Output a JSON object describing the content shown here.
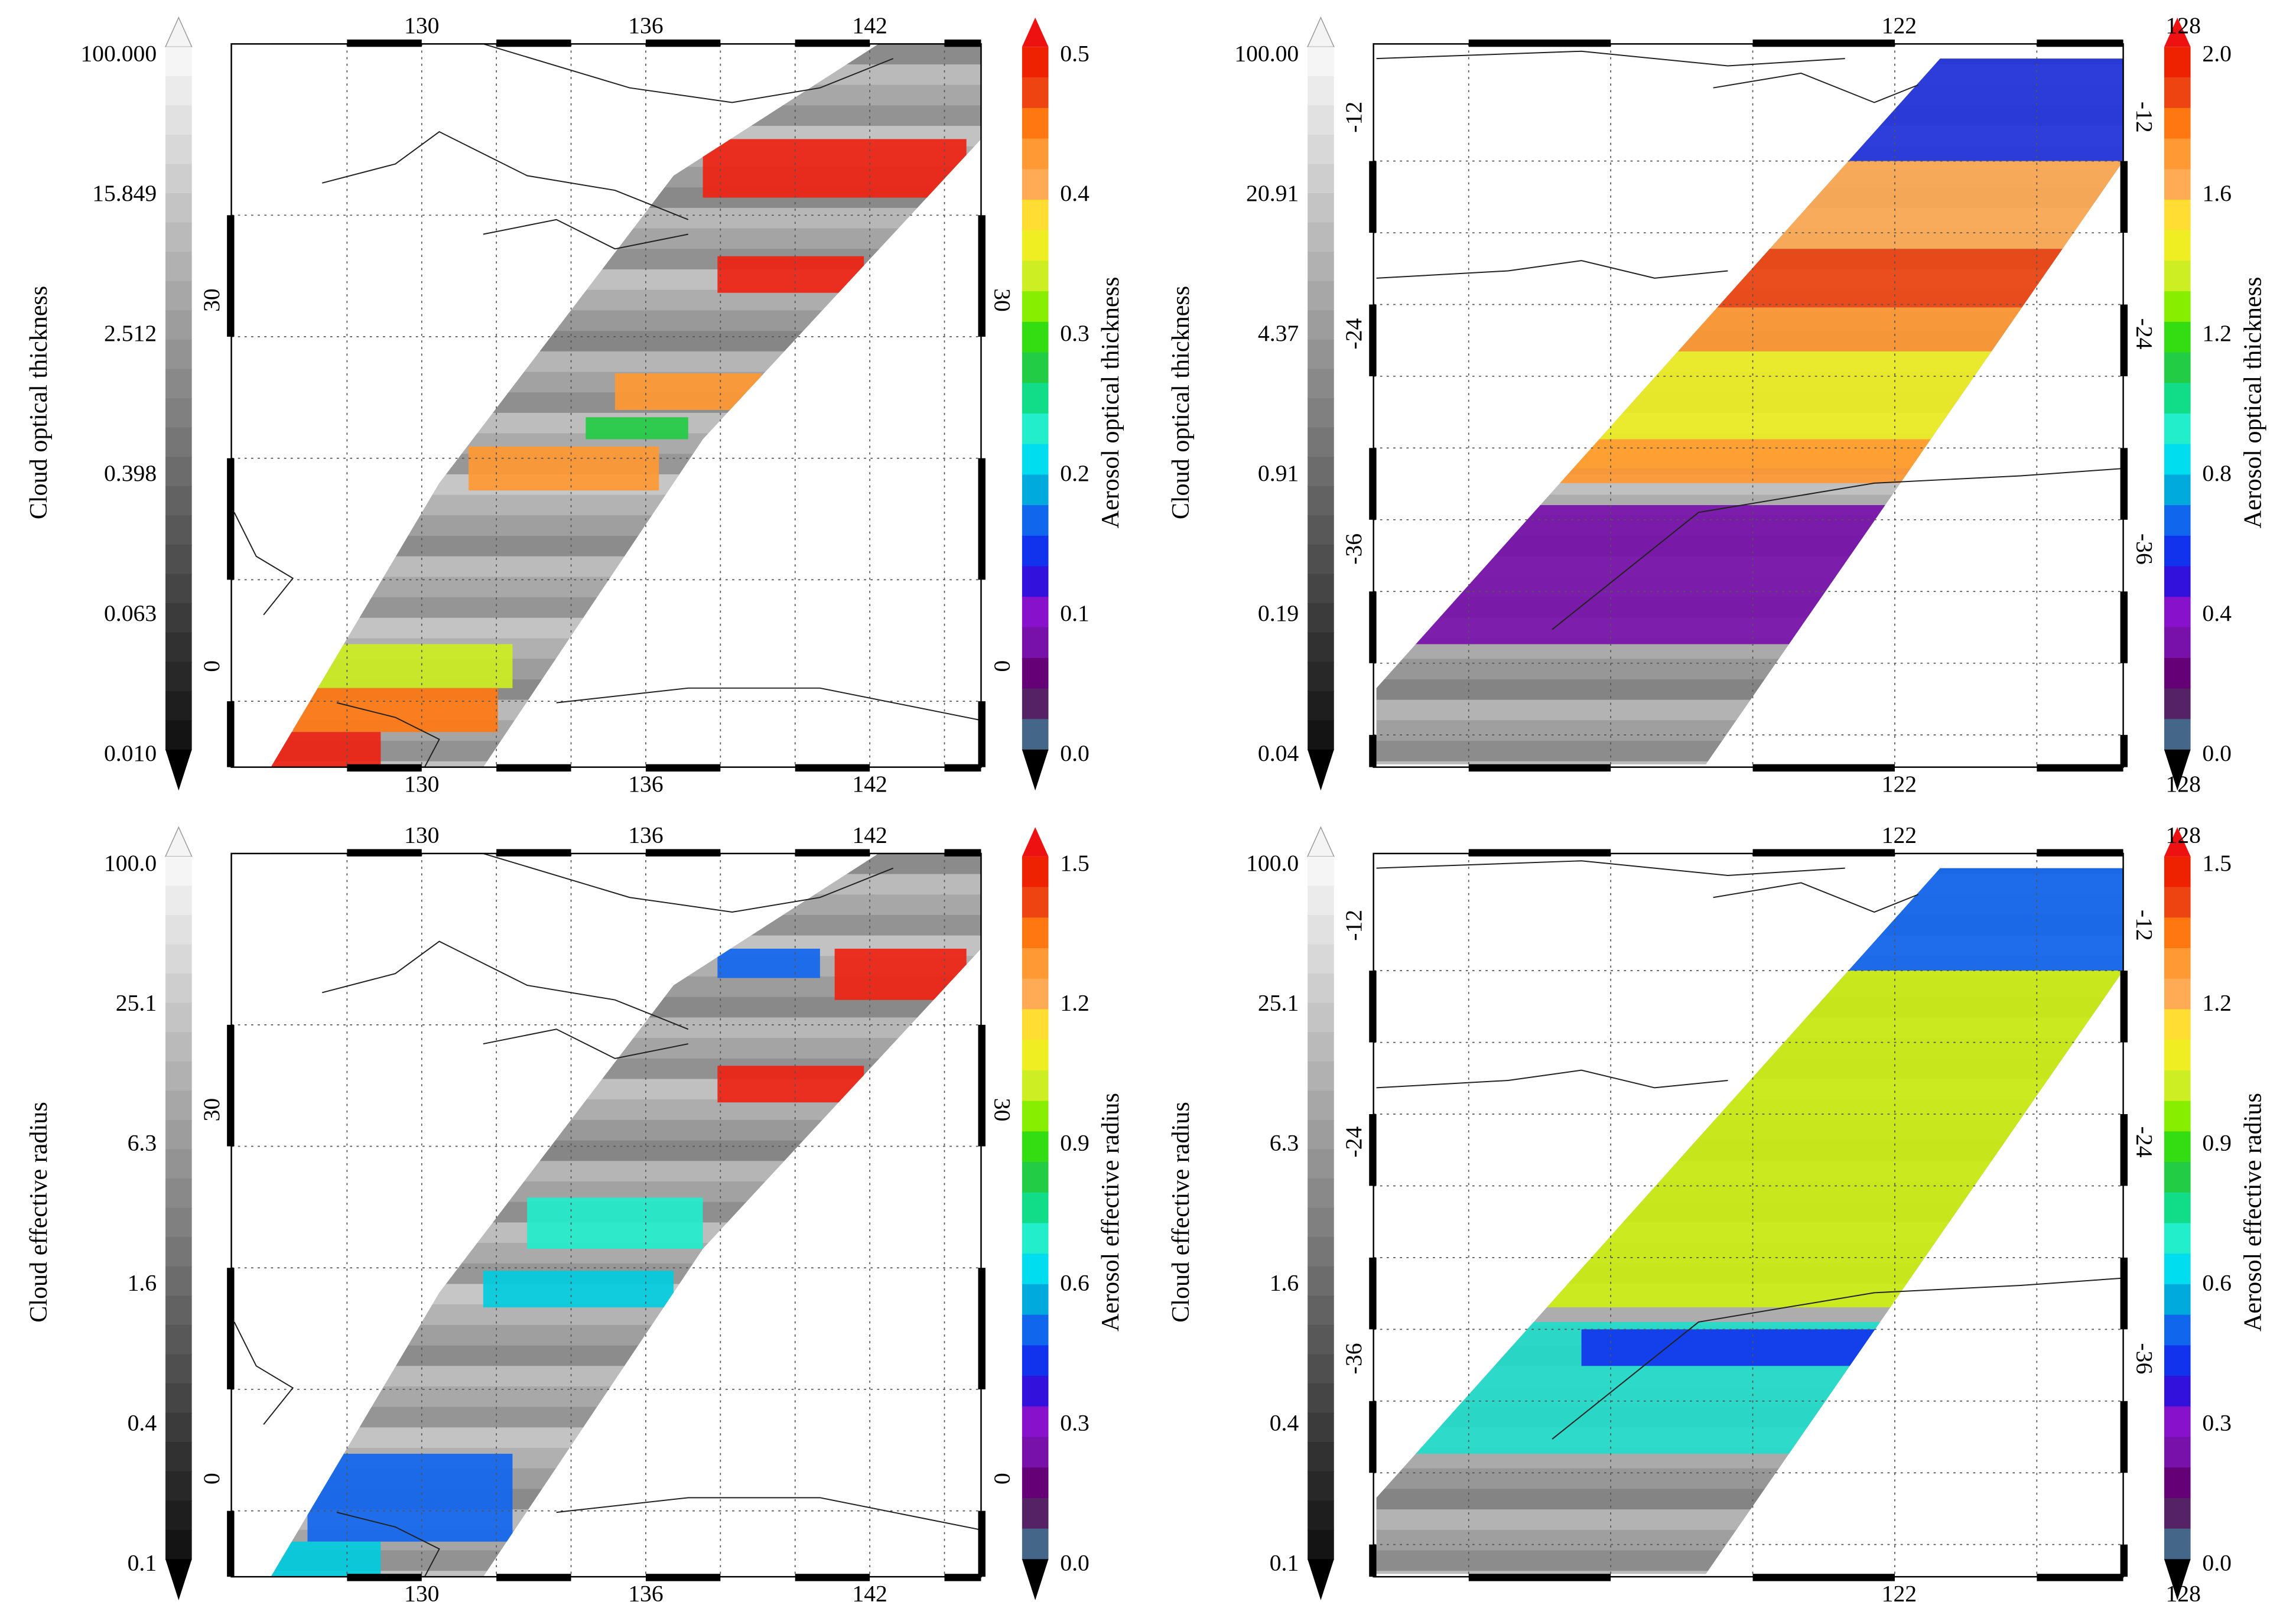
{
  "panels": [
    {
      "left_colorbar": {
        "label": "Cloud optical thickness",
        "ticks": [
          "100.000",
          "15.849",
          "2.512",
          "0.398",
          "0.063",
          "0.010"
        ]
      },
      "right_colorbar": {
        "label": "Aerosol optical thickness",
        "ticks": [
          "0.5",
          "0.4",
          "0.3",
          "0.2",
          "0.1",
          "0.0"
        ]
      },
      "lon_ticks": [
        "130",
        "136",
        "142"
      ],
      "lat_ticks": [
        "30",
        "0"
      ]
    },
    {
      "left_colorbar": {
        "label": "Cloud optical thickness",
        "ticks": [
          "100.00",
          "20.91",
          "4.37",
          "0.91",
          "0.19",
          "0.04"
        ]
      },
      "right_colorbar": {
        "label": "Aerosol optical thickness",
        "ticks": [
          "2.0",
          "1.6",
          "1.2",
          "0.8",
          "0.4",
          "0.0"
        ]
      },
      "lon_ticks": [
        "122",
        "128"
      ],
      "lat_ticks": [
        "-12",
        "-24",
        "-36"
      ]
    },
    {
      "left_colorbar": {
        "label": "Cloud effective radius",
        "ticks": [
          "100.0",
          "25.1",
          "6.3",
          "1.6",
          "0.4",
          "0.1"
        ]
      },
      "right_colorbar": {
        "label": "Aerosol effective radius",
        "ticks": [
          "1.5",
          "1.2",
          "0.9",
          "0.6",
          "0.3",
          "0.0"
        ]
      },
      "lon_ticks": [
        "130",
        "136",
        "142"
      ],
      "lat_ticks": [
        "30",
        "0"
      ]
    },
    {
      "left_colorbar": {
        "label": "Cloud effective radius",
        "ticks": [
          "100.0",
          "25.1",
          "6.3",
          "1.6",
          "0.4",
          "0.1"
        ]
      },
      "right_colorbar": {
        "label": "Aerosol effective radius",
        "ticks": [
          "1.5",
          "1.2",
          "0.9",
          "0.6",
          "0.3",
          "0.0"
        ]
      },
      "lon_ticks": [
        "122",
        "128"
      ],
      "lat_ticks": [
        "-12",
        "-24",
        "-36"
      ]
    }
  ]
}
